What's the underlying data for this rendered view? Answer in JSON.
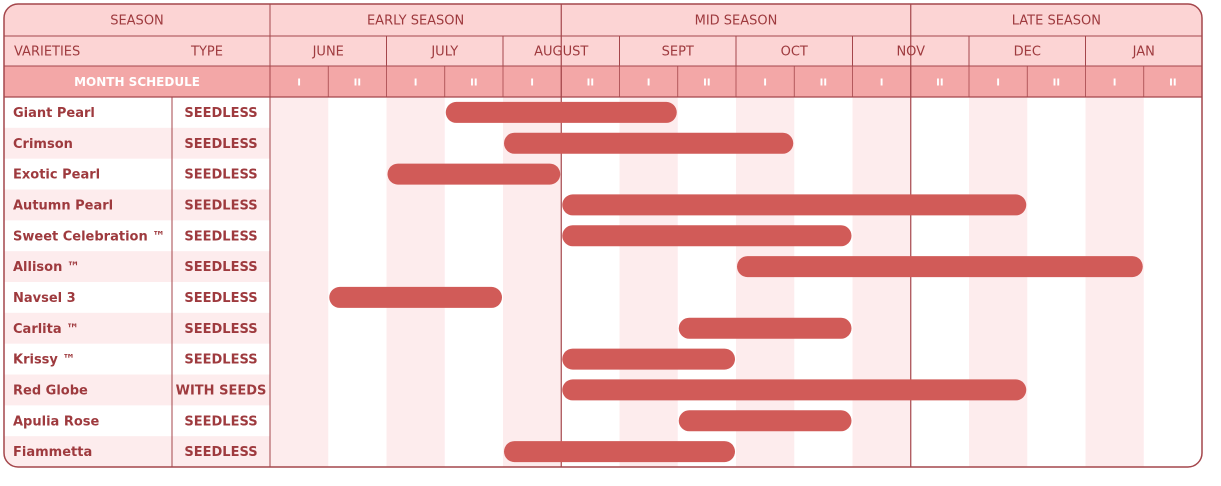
{
  "headers": {
    "season": "SEASON",
    "varieties": "VARIETIES",
    "type": "TYPE",
    "schedule": "MONTH SCHEDULE"
  },
  "seasons": [
    {
      "label": "EARLY SEASON",
      "from": 0,
      "to": 5
    },
    {
      "label": "MID SEASON",
      "from": 5,
      "to": 11
    },
    {
      "label": "LATE SEASON",
      "from": 11,
      "to": 16
    }
  ],
  "months": [
    "JUNE",
    "JULY",
    "AUGUST",
    "SEPT",
    "OCT",
    "NOV",
    "DEC",
    "JAN"
  ],
  "halves": [
    "I",
    "II",
    "I",
    "II",
    "I",
    "II",
    "I",
    "II",
    "I",
    "II",
    "I",
    "II",
    "I",
    "II",
    "I",
    "II"
  ],
  "colors": {
    "border": "#a4464b",
    "header_fill": "#fcd4d4",
    "schedule_fill": "#f3a7a7",
    "stripe": "#fdeced",
    "bar": "#d15b58",
    "text": "#9e3a3e"
  },
  "chart_data": {
    "type": "bar",
    "orientation": "horizontal-gantt",
    "time_axis": [
      "JUNE I",
      "JUNE II",
      "JULY I",
      "JULY II",
      "AUGUST I",
      "AUGUST II",
      "SEPT I",
      "SEPT II",
      "OCT I",
      "OCT II",
      "NOV I",
      "NOV II",
      "DEC I",
      "DEC II",
      "JAN I",
      "JAN II"
    ],
    "rows": [
      {
        "variety": "Giant Pearl",
        "type": "SEEDLESS",
        "start": "JULY II",
        "end": "SEPT I"
      },
      {
        "variety": "Crimson",
        "type": "SEEDLESS",
        "start": "AUGUST I",
        "end": "OCT I"
      },
      {
        "variety": "Exotic Pearl",
        "type": "SEEDLESS",
        "start": "JULY I",
        "end": "AUGUST I"
      },
      {
        "variety": "Autumn Pearl",
        "type": "SEEDLESS",
        "start": "AUGUST II",
        "end": "DEC I"
      },
      {
        "variety": "Sweet Celebration ™",
        "type": "SEEDLESS",
        "start": "AUGUST II",
        "end": "OCT II"
      },
      {
        "variety": "Allison ™",
        "type": "SEEDLESS",
        "start": "OCT I",
        "end": "JAN I"
      },
      {
        "variety": "Navsel 3",
        "type": "SEEDLESS",
        "start": "JUNE II",
        "end": "JULY II"
      },
      {
        "variety": "Carlita ™",
        "type": "SEEDLESS",
        "start": "SEPT II",
        "end": "OCT II"
      },
      {
        "variety": "Krissy ™",
        "type": "SEEDLESS",
        "start": "AUGUST II",
        "end": "SEPT II"
      },
      {
        "variety": "Red Globe",
        "type": "WITH SEEDS",
        "start": "AUGUST II",
        "end": "DEC I"
      },
      {
        "variety": "Apulia Rose",
        "type": "SEEDLESS",
        "start": "SEPT II",
        "end": "OCT II"
      },
      {
        "variety": "Fiammetta",
        "type": "SEEDLESS",
        "start": "AUGUST I",
        "end": "SEPT II"
      }
    ]
  }
}
